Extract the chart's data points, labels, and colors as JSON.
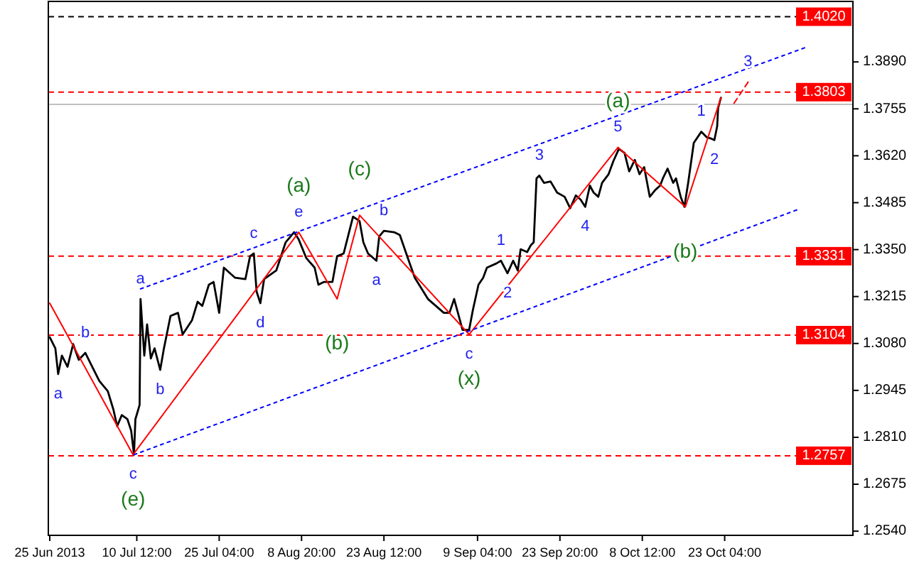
{
  "chart_data": {
    "type": "line",
    "xlim": [
      "2013-06-24T18:00",
      "2013-11-15T00:00"
    ],
    "xticks": [
      {
        "value": "2013-06-25T00:00",
        "label": "25 Jun 2013"
      },
      {
        "value": "2013-07-10T12:00",
        "label": "10 Jul 12:00"
      },
      {
        "value": "2013-07-25T04:00",
        "label": "25 Jul 04:00"
      },
      {
        "value": "2013-08-08T20:00",
        "label": "8 Aug 20:00"
      },
      {
        "value": "2013-08-23T12:00",
        "label": "23 Aug 12:00"
      },
      {
        "value": "2013-09-09T04:00",
        "label": "9 Sep 04:00"
      },
      {
        "value": "2013-09-23T20:00",
        "label": "23 Sep 20:00"
      },
      {
        "value": "2013-10-08T12:00",
        "label": "8 Oct 12:00"
      },
      {
        "value": "2013-10-23T04:00",
        "label": "23 Oct 04:00"
      }
    ],
    "ylim": [
      1.2528,
      1.4064
    ],
    "yticks": [
      {
        "value": 1.254,
        "label": "1.2540"
      },
      {
        "value": 1.2675,
        "label": "1.2675"
      },
      {
        "value": 1.281,
        "label": "1.2810"
      },
      {
        "value": 1.2945,
        "label": "1.2945"
      },
      {
        "value": 1.308,
        "label": "1.3080"
      },
      {
        "value": 1.3215,
        "label": "1.3215"
      },
      {
        "value": 1.335,
        "label": "1.3350"
      },
      {
        "value": 1.3485,
        "label": "1.3485"
      },
      {
        "value": 1.362,
        "label": "1.3620"
      },
      {
        "value": 1.3755,
        "label": "1.3755"
      },
      {
        "value": 1.389,
        "label": "1.3890"
      }
    ],
    "grid": false,
    "series": [
      {
        "color": "#000000",
        "line_style": "solid",
        "x": [
          "2013-06-25T00:00",
          "2013-06-26T00:00",
          "2013-06-26T12:00",
          "2013-06-27T04:00",
          "2013-06-28T04:00",
          "2013-06-29T04:00",
          "2013-06-30T04:00",
          "2013-07-01T08:00",
          "2013-07-02T20:00",
          "2013-07-03T20:00",
          "2013-07-05T08:00",
          "2013-07-06T08:00",
          "2013-07-07T00:00",
          "2013-07-07T20:00",
          "2013-07-08T20:00",
          "2013-07-09T12:00",
          "2013-07-10T00:00",
          "2013-07-10T06:00",
          "2013-07-11T00:00",
          "2013-07-11T04:00",
          "2013-07-11T20:00",
          "2013-07-12T08:00",
          "2013-07-13T00:00",
          "2013-07-13T16:00",
          "2013-07-14T16:00",
          "2013-07-15T08:00",
          "2013-07-16T12:00",
          "2013-07-17T20:00",
          "2013-07-18T16:00",
          "2013-07-20T08:00",
          "2013-07-21T08:00",
          "2013-07-22T04:00",
          "2013-07-23T08:00",
          "2013-07-24T04:00",
          "2013-07-25T04:00",
          "2013-07-26T00:00",
          "2013-07-28T00:00",
          "2013-07-29T20:00",
          "2013-07-30T16:00",
          "2013-07-31T08:00",
          "2013-07-31T20:00",
          "2013-08-01T12:00",
          "2013-08-02T04:00",
          "2013-08-04T08:00",
          "2013-08-06T00:00",
          "2013-08-07T12:00",
          "2013-08-08T08:00",
          "2013-08-09T16:00",
          "2013-08-11T04:00",
          "2013-08-11T20:00",
          "2013-08-12T20:00",
          "2013-08-14T08:00",
          "2013-08-15T04:00",
          "2013-08-16T08:00",
          "2013-08-18T00:00",
          "2013-08-19T04:00",
          "2013-08-19T20:00",
          "2013-08-20T16:00",
          "2013-08-22T04:00",
          "2013-08-22T16:00",
          "2013-08-23T12:00",
          "2013-08-25T08:00",
          "2013-08-26T08:00",
          "2013-08-27T20:00",
          "2013-08-29T00:00",
          "2013-08-31T08:00",
          "2013-09-03T04:00",
          "2013-09-04T04:00",
          "2013-09-05T00:00",
          "2013-09-06T12:00",
          "2013-09-07T16:00",
          "2013-09-08T08:00",
          "2013-09-09T08:00",
          "2013-09-10T04:00",
          "2013-09-10T20:00",
          "2013-09-12T12:00",
          "2013-09-13T08:00",
          "2013-09-14T12:00",
          "2013-09-15T12:00",
          "2013-09-16T08:00",
          "2013-09-16T20:00",
          "2013-09-18T00:00",
          "2013-09-18T16:00",
          "2013-09-19T04:00",
          "2013-09-19T16:00",
          "2013-09-20T04:00",
          "2013-09-21T00:00",
          "2013-09-22T04:00",
          "2013-09-23T08:00",
          "2013-09-24T16:00",
          "2013-09-25T16:00",
          "2013-09-26T16:00",
          "2013-09-27T12:00",
          "2013-09-28T08:00",
          "2013-09-29T04:00",
          "2013-09-29T20:00",
          "2013-09-30T16:00",
          "2013-10-01T08:00",
          "2013-10-02T12:00",
          "2013-10-03T08:00",
          "2013-10-04T08:00",
          "2013-10-05T08:00",
          "2013-10-06T04:00",
          "2013-10-07T04:00",
          "2013-10-08T00:00",
          "2013-10-08T20:00",
          "2013-10-09T20:00",
          "2013-10-10T20:00",
          "2013-10-11T16:00",
          "2013-10-12T04:00",
          "2013-10-13T00:00",
          "2013-10-14T00:00",
          "2013-10-14T12:00",
          "2013-10-15T08:00",
          "2013-10-16T00:00",
          "2013-10-16T16:00",
          "2013-10-17T16:00",
          "2013-10-19T00:00",
          "2013-10-20T00:00",
          "2013-10-20T20:00",
          "2013-10-21T08:00",
          "2013-10-21T20:00",
          "2013-10-22T00:00",
          "2013-10-22T12:00"
        ],
        "values": [
          1.3098,
          1.3066,
          1.2992,
          1.3045,
          1.3013,
          1.3078,
          1.3033,
          1.3053,
          1.3004,
          1.2972,
          1.2943,
          1.289,
          1.2842,
          1.2874,
          1.2862,
          1.2829,
          1.276,
          1.2862,
          1.2903,
          1.3208,
          1.3045,
          1.3135,
          1.3037,
          1.3066,
          1.3004,
          1.3066,
          1.3159,
          1.3168,
          1.3106,
          1.3147,
          1.32,
          1.3188,
          1.3249,
          1.3257,
          1.3168,
          1.3298,
          1.3269,
          1.3265,
          1.3331,
          1.3339,
          1.3229,
          1.3196,
          1.3265,
          1.329,
          1.3371,
          1.34,
          1.3379,
          1.3326,
          1.3298,
          1.3249,
          1.3257,
          1.3257,
          1.3331,
          1.3339,
          1.3445,
          1.3432,
          1.3371,
          1.3339,
          1.3318,
          1.3388,
          1.3404,
          1.34,
          1.3392,
          1.3322,
          1.3269,
          1.3208,
          1.3168,
          1.3168,
          1.3208,
          1.3119,
          1.3119,
          1.3176,
          1.3249,
          1.3269,
          1.3298,
          1.331,
          1.3318,
          1.3282,
          1.3318,
          1.329,
          1.3351,
          1.3343,
          1.3363,
          1.3371,
          1.3555,
          1.3563,
          1.3542,
          1.3546,
          1.3514,
          1.3502,
          1.3469,
          1.3506,
          1.3494,
          1.3473,
          1.3534,
          1.3514,
          1.3502,
          1.3542,
          1.3567,
          1.3604,
          1.364,
          1.3628,
          1.3575,
          1.3608,
          1.3567,
          1.3587,
          1.3502,
          1.3522,
          1.3534,
          1.3555,
          1.3583,
          1.3542,
          1.3555,
          1.3502,
          1.3473,
          1.3542,
          1.3657,
          1.3689,
          1.3673,
          1.3669,
          1.3665,
          1.3705,
          1.3758,
          1.3787
        ]
      },
      {
        "color": "#ff0000",
        "line_style": "solid",
        "x": [
          "2013-06-25T00:00",
          "2013-07-09T20:00",
          "2013-08-08T08:00",
          "2013-08-15T04:00",
          "2013-08-19T04:00",
          "2013-09-07T16:00",
          "2013-10-04T04:00",
          "2013-10-16T04:00",
          "2013-10-22T12:00"
        ],
        "values": [
          1.3196,
          1.276,
          1.34,
          1.3208,
          1.3449,
          1.3106,
          1.3644,
          1.3473,
          1.3787
        ]
      },
      {
        "color": "#ff0000",
        "line_style": "dashed",
        "x": [
          "2013-10-24T20:00",
          "2013-10-27T08:00"
        ],
        "values": [
          1.3771,
          1.3832
        ]
      },
      {
        "color": "#0000ff",
        "line_style": "dotted",
        "x": [
          "2013-07-11T04:00",
          "2013-11-07T00:00"
        ],
        "values": [
          1.3237,
          1.3934
        ]
      },
      {
        "color": "#0000ff",
        "line_style": "dotted",
        "x": [
          "2013-07-10T00:00",
          "2013-11-05T04:00"
        ],
        "values": [
          1.276,
          1.3465
        ]
      }
    ],
    "ref_lines": [
      {
        "axis": "y",
        "value": 1.402,
        "label": "1.4020",
        "color": "#000000",
        "line_style": "dashed"
      },
      {
        "axis": "y",
        "value": 1.3803,
        "label": "1.3803",
        "color": "#ff0000",
        "line_style": "dashed"
      },
      {
        "axis": "y",
        "value": 1.3768,
        "color": "#c0c0c0",
        "line_style": "solid"
      },
      {
        "axis": "y",
        "value": 1.3331,
        "label": "1.3331",
        "color": "#ff0000",
        "line_style": "dashed"
      },
      {
        "axis": "y",
        "value": 1.3104,
        "label": "1.3104",
        "color": "#ff0000",
        "line_style": "dashed"
      },
      {
        "axis": "y",
        "value": 1.2757,
        "label": "1.2757",
        "color": "#ff0000",
        "line_style": "dashed"
      }
    ],
    "annotations": [
      {
        "text": "(a)",
        "x": "2013-08-08T08:00",
        "y": 1.34
      },
      {
        "text": "(c)",
        "x": "2013-08-19T04:00",
        "y": 1.3449
      },
      {
        "text": "(b)",
        "x": "2013-08-15T04:00",
        "y": 1.3208
      },
      {
        "text": "(e)",
        "x": "2013-07-09T20:00",
        "y": 1.276
      },
      {
        "text": "(x)",
        "x": "2013-09-07T16:00",
        "y": 1.3106
      },
      {
        "text": "(a)",
        "x": "2013-10-04T04:00",
        "y": 1.3644
      },
      {
        "text": "(b)",
        "x": "2013-10-16T04:00",
        "y": 1.3473
      },
      {
        "text": "a",
        "x": "2013-06-26T12:00",
        "y": 1.2992
      },
      {
        "text": "b",
        "x": "2013-07-01T08:00",
        "y": 1.3053
      },
      {
        "text": "c",
        "x": "2013-07-09T20:00",
        "y": 1.276
      },
      {
        "text": "a",
        "x": "2013-07-11T04:00",
        "y": 1.3208
      },
      {
        "text": "b",
        "x": "2013-07-14T16:00",
        "y": 1.3004
      },
      {
        "text": "c",
        "x": "2013-07-31T08:00",
        "y": 1.3339
      },
      {
        "text": "d",
        "x": "2013-08-01T12:00",
        "y": 1.3196
      },
      {
        "text": "e",
        "x": "2013-08-08T08:00",
        "y": 1.34
      },
      {
        "text": "b",
        "x": "2013-08-23T12:00",
        "y": 1.3404
      },
      {
        "text": "a",
        "x": "2013-08-22T04:00",
        "y": 1.3318
      },
      {
        "text": "c",
        "x": "2013-09-07T16:00",
        "y": 1.3106
      },
      {
        "text": "1",
        "x": "2013-09-13T08:00",
        "y": 1.3318
      },
      {
        "text": "2",
        "x": "2013-09-14T12:00",
        "y": 1.3282
      },
      {
        "text": "3",
        "x": "2013-09-20T04:00",
        "y": 1.3563
      },
      {
        "text": "4",
        "x": "2013-09-28T08:00",
        "y": 1.3473
      },
      {
        "text": "5",
        "x": "2013-10-04T04:00",
        "y": 1.3644
      },
      {
        "text": "1",
        "x": "2013-10-19T00:00",
        "y": 1.3689
      },
      {
        "text": "2",
        "x": "2013-10-21T08:00",
        "y": 1.3665
      },
      {
        "text": "3",
        "x": "2013-10-27T08:00",
        "y": 1.3832
      }
    ]
  }
}
